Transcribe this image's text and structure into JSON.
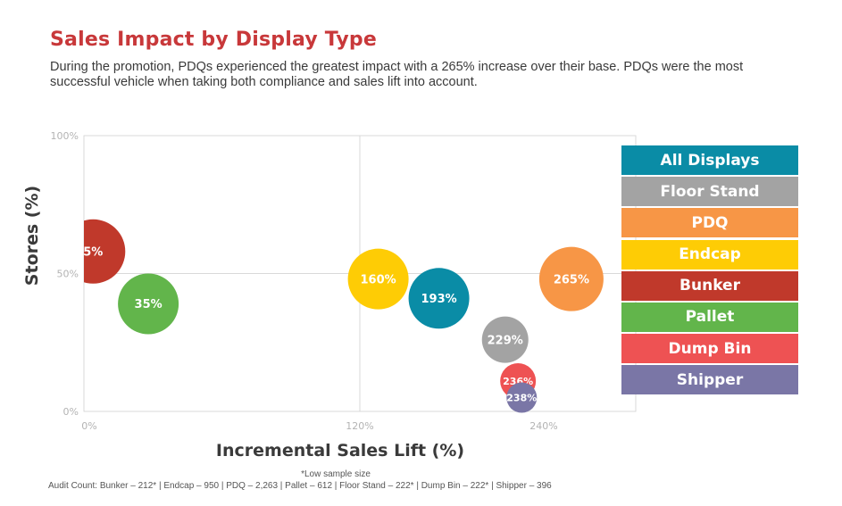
{
  "title": "Sales Impact by Display Type",
  "subtitle": "During the promotion, PDQs experienced the greatest impact with a 265% increase over their base. PDQs were the most successful vehicle when taking both compliance and sales lift into account.",
  "legend": [
    {
      "label": "All Displays",
      "color": "#0a8ca6"
    },
    {
      "label": "Floor Stand",
      "color": "#a3a3a3"
    },
    {
      "label": "PDQ",
      "color": "#f79646"
    },
    {
      "label": "Endcap",
      "color": "#fecc05"
    },
    {
      "label": "Bunker",
      "color": "#c0392b"
    },
    {
      "label": "Pallet",
      "color": "#62b54b"
    },
    {
      "label": "Dump Bin",
      "color": "#ee5253"
    },
    {
      "label": "Shipper",
      "color": "#7a76a6"
    }
  ],
  "footnote": "*Low sample size",
  "audit": "Audit Count: Bunker – 212* | Endcap – 950 | PDQ – 2,263 | Pallet – 612 | Floor Stand – 222* | Dump Bin – 222* | Shipper – 396",
  "chart_data": {
    "type": "scatter",
    "title": "Sales Impact by Display Type",
    "xlabel": "Incremental Sales Lift (%)",
    "ylabel": "Stores (%)",
    "xlim": [
      0,
      300
    ],
    "ylim": [
      0,
      100
    ],
    "x_ticks": [
      "0%",
      "120%",
      "240%"
    ],
    "y_ticks": [
      "0%",
      "50%",
      "100%"
    ],
    "grid": true,
    "legend_position": "right",
    "points": [
      {
        "name": "Bunker",
        "x": 5,
        "y": 58,
        "label": "5%",
        "audit_count": 212,
        "color": "#c0392b"
      },
      {
        "name": "Pallet",
        "x": 35,
        "y": 39,
        "label": "35%",
        "audit_count": 612,
        "color": "#62b54b"
      },
      {
        "name": "Endcap",
        "x": 160,
        "y": 48,
        "label": "160%",
        "audit_count": 950,
        "color": "#fecc05"
      },
      {
        "name": "All Displays",
        "x": 193,
        "y": 41,
        "label": "193%",
        "color": "#0a8ca6"
      },
      {
        "name": "PDQ",
        "x": 265,
        "y": 48,
        "label": "265%",
        "audit_count": 2263,
        "color": "#f79646"
      },
      {
        "name": "Floor Stand",
        "x": 229,
        "y": 26,
        "label": "229%",
        "audit_count": 222,
        "color": "#a3a3a3"
      },
      {
        "name": "Dump Bin",
        "x": 236,
        "y": 11,
        "label": "236%",
        "audit_count": 222,
        "color": "#ee5253"
      },
      {
        "name": "Shipper",
        "x": 238,
        "y": 5,
        "label": "238%",
        "audit_count": 396,
        "color": "#7a76a6"
      }
    ]
  }
}
